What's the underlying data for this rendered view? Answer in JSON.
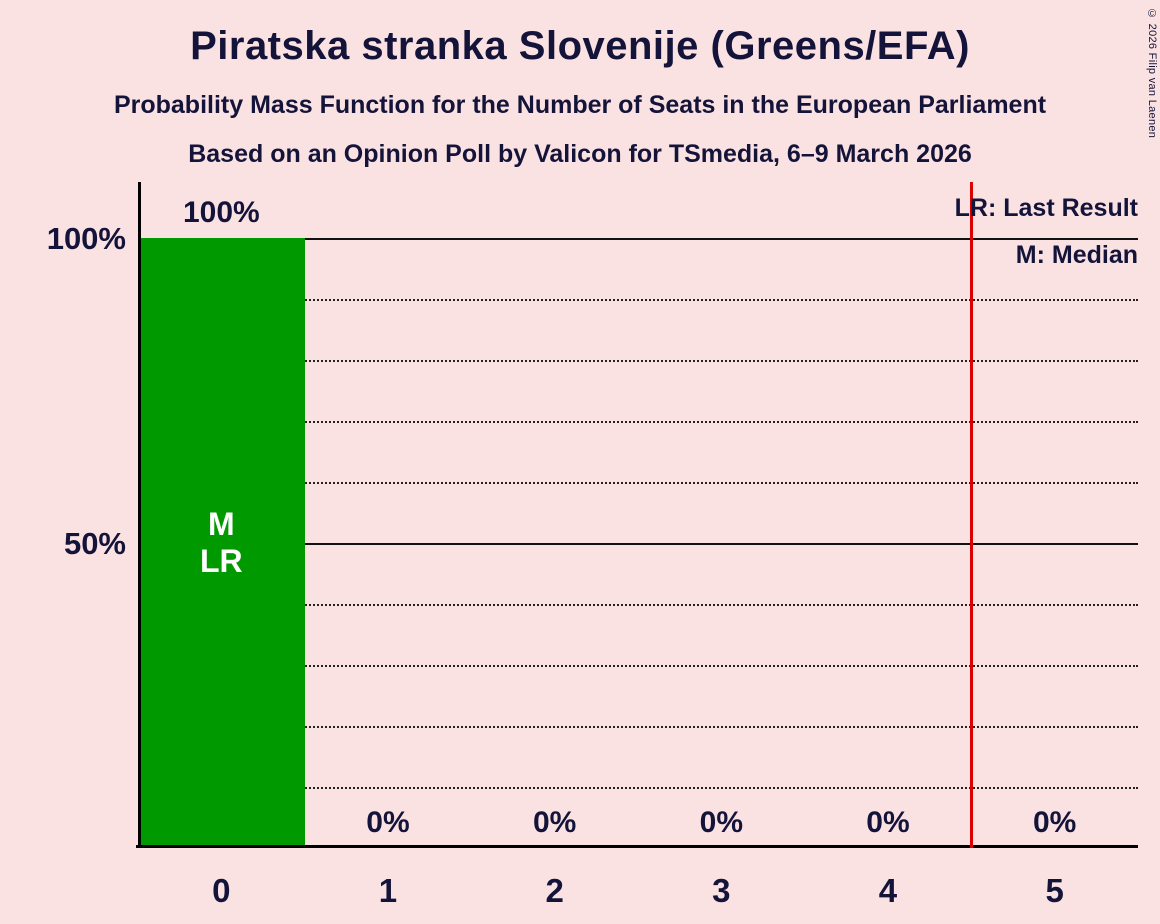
{
  "title": "Piratska stranka Slovenije (Greens/EFA)",
  "subtitle1": "Probability Mass Function for the Number of Seats in the European Parliament",
  "subtitle2": "Based on an Opinion Poll by Valicon for TSmedia, 6–9 March 2026",
  "copyright": "© 2026 Filip van Laenen",
  "legend": {
    "lr": "LR: Last Result",
    "m": "M: Median"
  },
  "colors": {
    "background": "#fbe2e2",
    "bar": "#009a00",
    "bar_label": "#ffffff",
    "last_result_line": "#dc0000",
    "text": "#14143a"
  },
  "y_axis": {
    "ticks": [
      "100%",
      "50%"
    ]
  },
  "chart_data": {
    "type": "bar",
    "title": "Piratska stranka Slovenije (Greens/EFA)",
    "xlabel": "",
    "ylabel": "",
    "categories": [
      "0",
      "1",
      "2",
      "3",
      "4",
      "5"
    ],
    "values": [
      100,
      0,
      0,
      0,
      0,
      0
    ],
    "value_labels": [
      "100%",
      "0%",
      "0%",
      "0%",
      "0%",
      "0%"
    ],
    "ylim": [
      0,
      100
    ],
    "gridlines": {
      "solid": [
        100,
        50
      ],
      "dotted": [
        90,
        80,
        70,
        60,
        40,
        30,
        20,
        10
      ]
    },
    "median_seat": 0,
    "bar_annotations": [
      "M",
      "LR"
    ],
    "last_result_x": 4.5,
    "legend_position": "top-right",
    "grid": true
  }
}
